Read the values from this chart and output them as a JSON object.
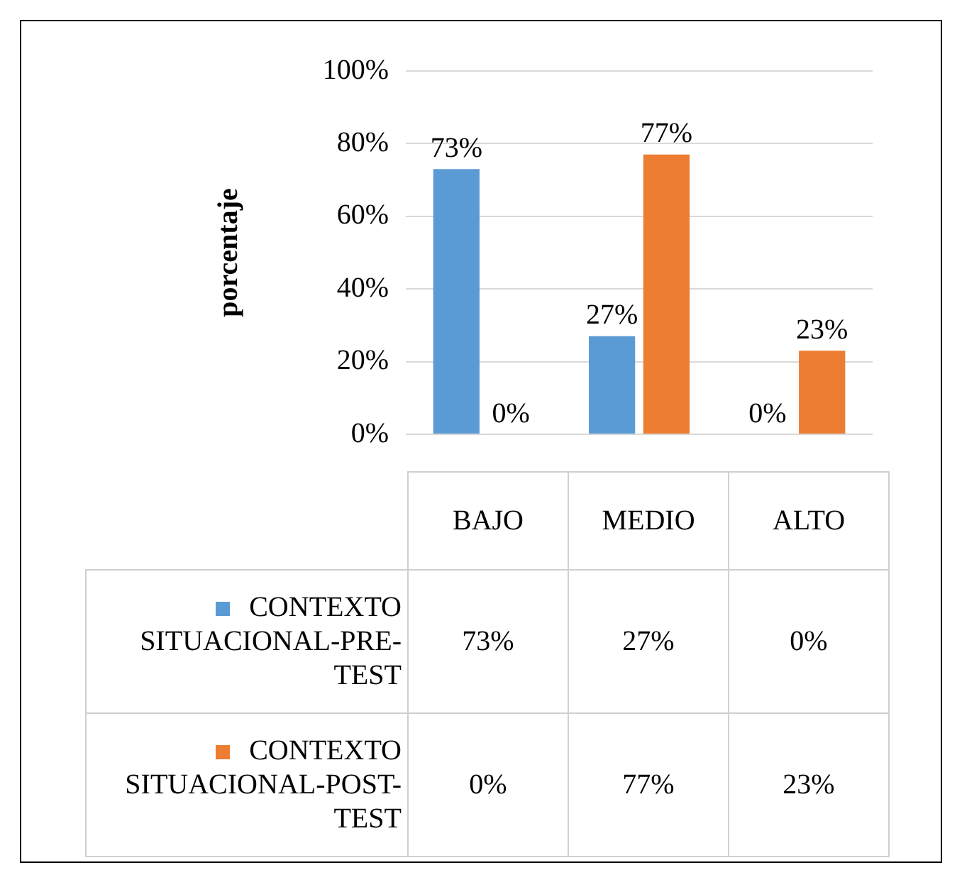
{
  "chart_data": {
    "type": "bar",
    "ylabel": "porcentaje",
    "categories": [
      "BAJO",
      "MEDIO",
      "ALTO"
    ],
    "series": [
      {
        "name": "CONTEXTO SITUACIONAL-PRE-TEST",
        "color": "#5b9bd5",
        "values": [
          73,
          27,
          0
        ],
        "value_labels": [
          "73%",
          "27%",
          "0%"
        ]
      },
      {
        "name": "CONTEXTO SITUACIONAL-POST-TEST",
        "color": "#ed7d31",
        "values": [
          0,
          77,
          23
        ],
        "value_labels": [
          "0%",
          "77%",
          "23%"
        ]
      }
    ],
    "ylim": [
      0,
      100
    ],
    "yticks": [
      {
        "value": 0,
        "label": "0%"
      },
      {
        "value": 20,
        "label": "20%"
      },
      {
        "value": 40,
        "label": "40%"
      },
      {
        "value": 60,
        "label": "60%"
      },
      {
        "value": 80,
        "label": "80%"
      },
      {
        "value": 100,
        "label": "100%"
      }
    ],
    "grid": "y",
    "legend": "bottom"
  }
}
